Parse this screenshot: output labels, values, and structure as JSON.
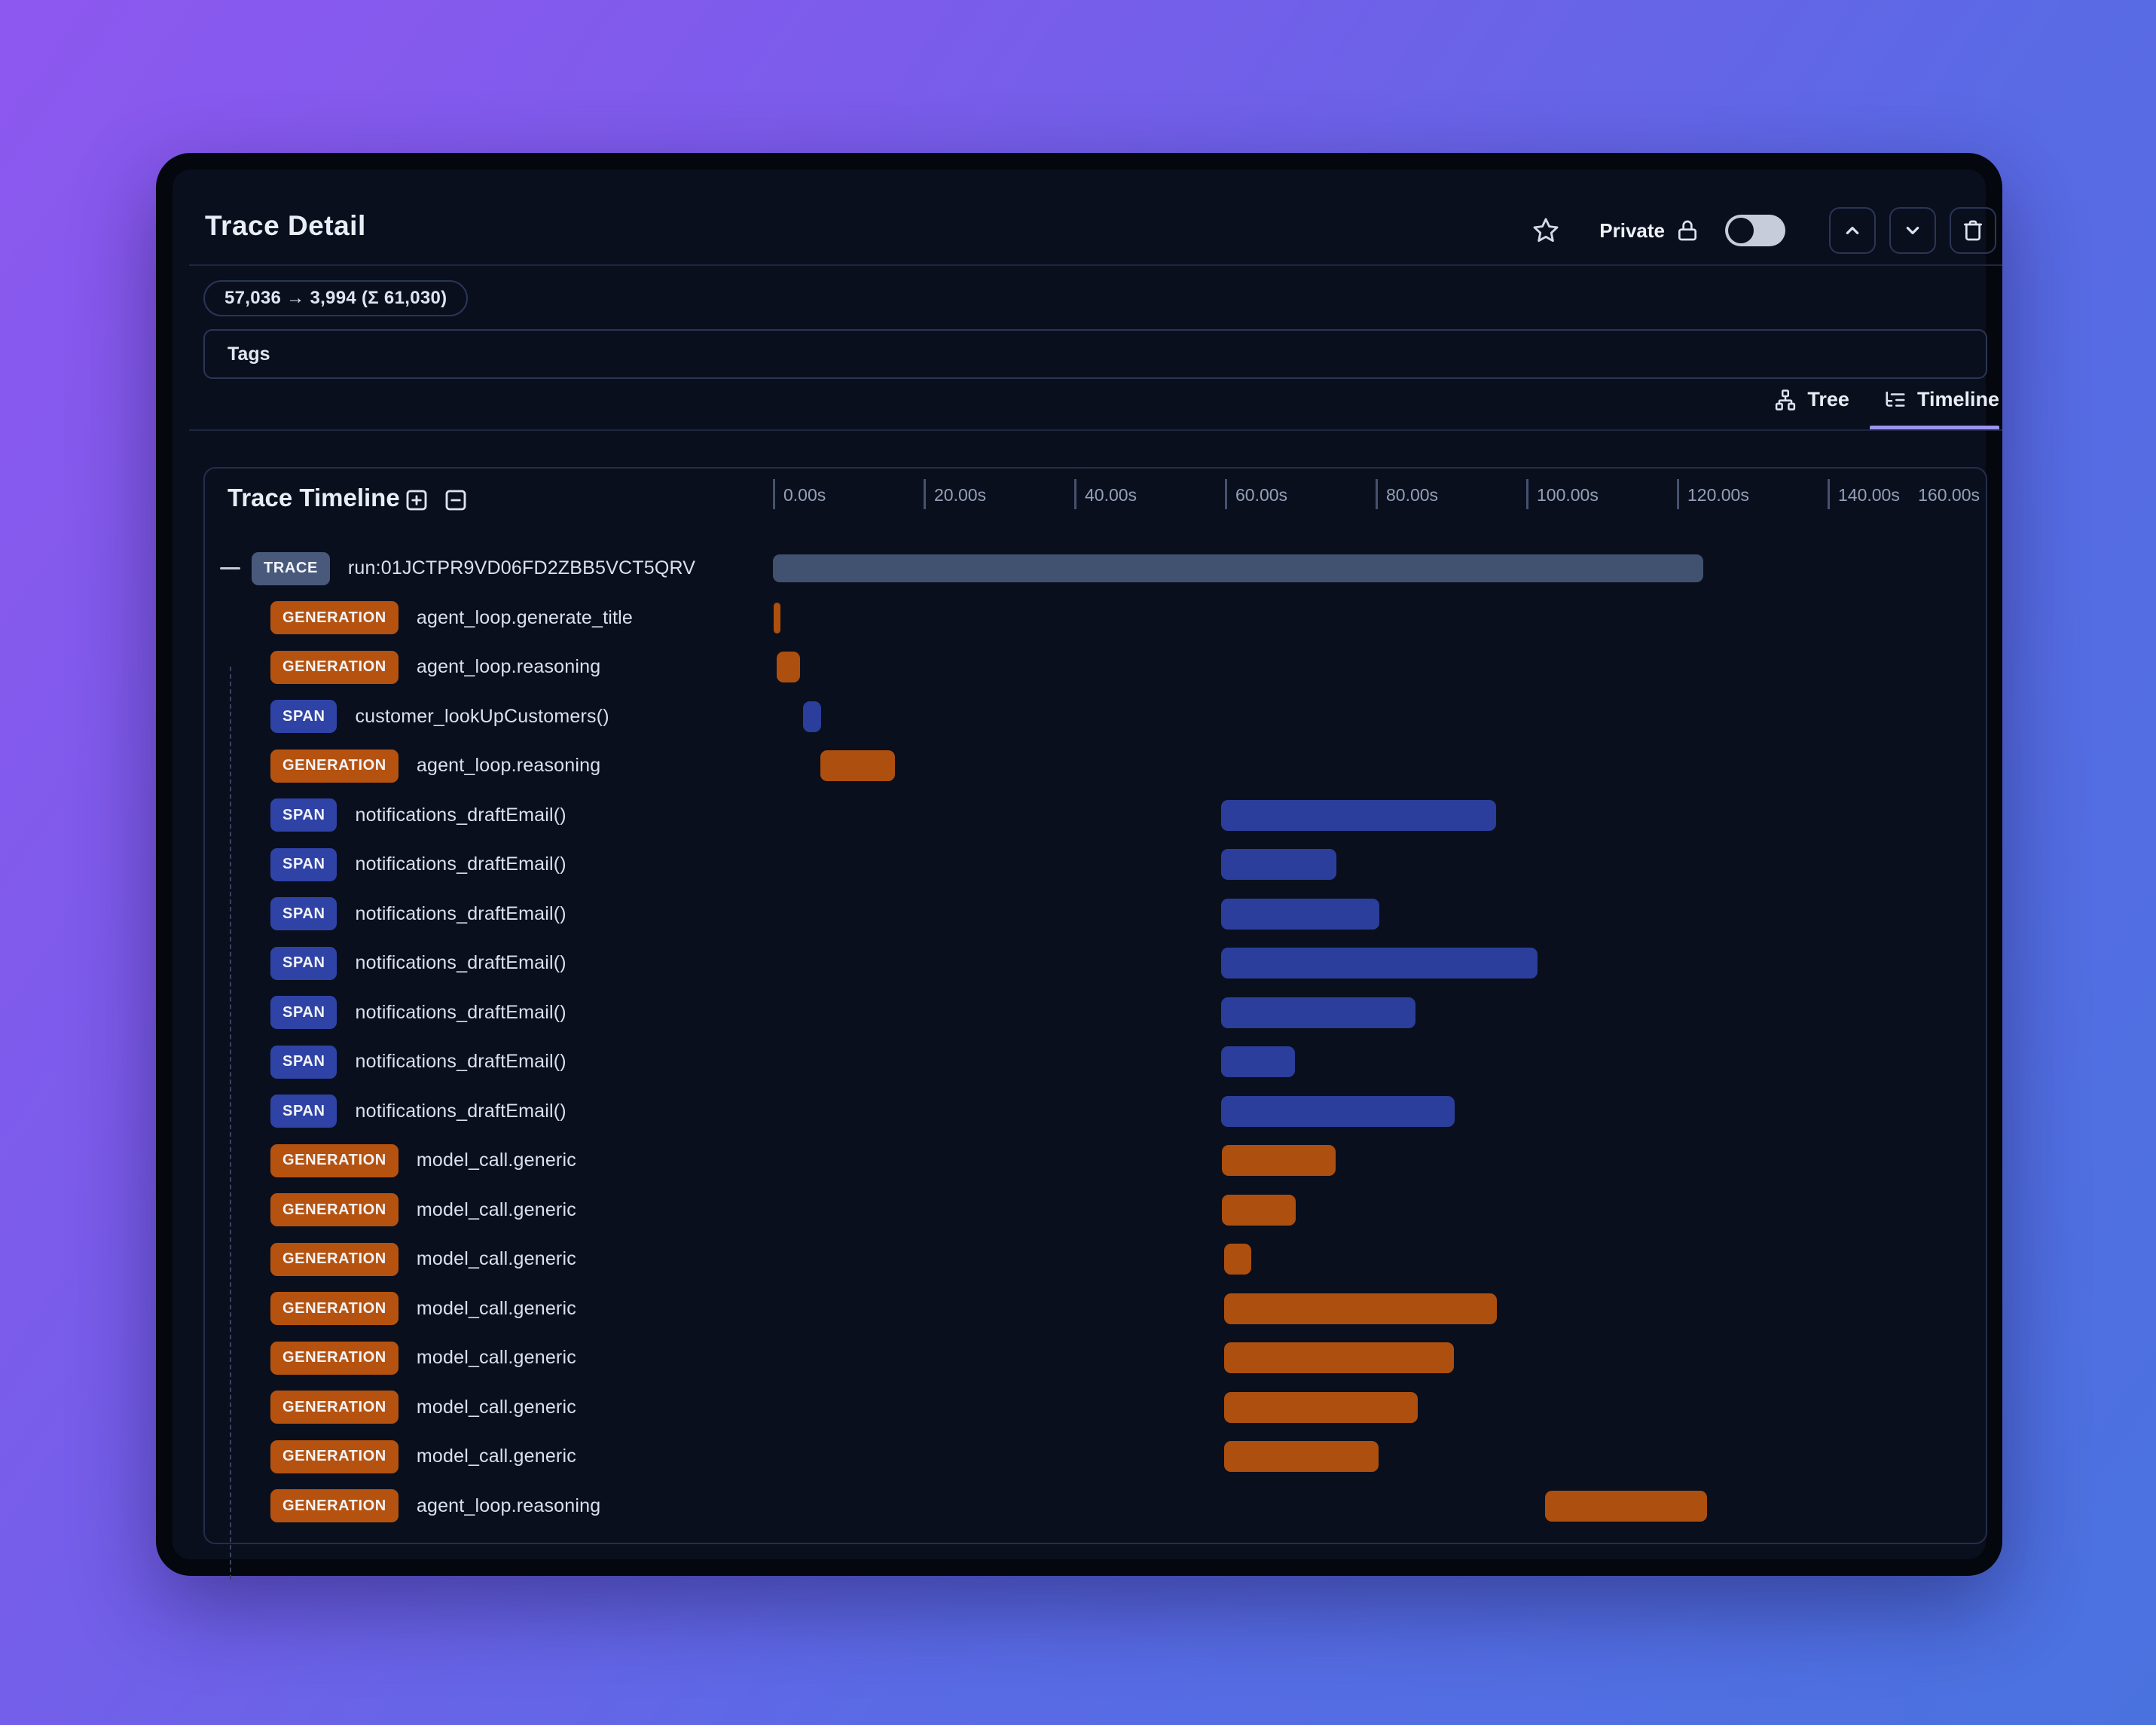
{
  "header": {
    "title": "Trace Detail",
    "privacy_label": "Private",
    "toggle_state": "off",
    "actions": {
      "prev_label": "chevron-up",
      "next_label": "chevron-down",
      "delete_label": "trash"
    }
  },
  "token_summary": "57,036 → 3,994 (Σ 61,030)",
  "tags": {
    "label": "Tags"
  },
  "tabs": [
    {
      "label": "Tree",
      "icon": "tree-icon",
      "active": false
    },
    {
      "label": "Timeline",
      "icon": "list-tree-icon",
      "active": true
    }
  ],
  "timeline": {
    "title": "Trace Timeline",
    "axis": {
      "ticks": [
        "0.00s",
        "20.00s",
        "40.00s",
        "60.00s",
        "80.00s",
        "100.00s",
        "120.00s",
        "140.00s"
      ],
      "end_label": "160.00s",
      "tick_interval_s": 20,
      "max_s": 160
    },
    "rows": [
      {
        "type": "TRACE",
        "name": "run:01JCTPR9VD06FD2ZBB5VCT5QRV",
        "start_s": 0,
        "end_s": 123.5,
        "depth": 0,
        "collapsible": true
      },
      {
        "type": "GENERATION",
        "name": "agent_loop.generate_title",
        "start_s": 0.1,
        "end_s": 1.0,
        "depth": 1
      },
      {
        "type": "GENERATION",
        "name": "agent_loop.reasoning",
        "start_s": 0.5,
        "end_s": 3.6,
        "depth": 1
      },
      {
        "type": "SPAN",
        "name": "customer_lookUpCustomers()",
        "start_s": 4.0,
        "end_s": 6.4,
        "depth": 1
      },
      {
        "type": "GENERATION",
        "name": "agent_loop.reasoning",
        "start_s": 6.3,
        "end_s": 16.2,
        "depth": 1
      },
      {
        "type": "SPAN",
        "name": "notifications_draftEmail()",
        "start_s": 59.5,
        "end_s": 96.0,
        "depth": 1
      },
      {
        "type": "SPAN",
        "name": "notifications_draftEmail()",
        "start_s": 59.5,
        "end_s": 74.8,
        "depth": 1
      },
      {
        "type": "SPAN",
        "name": "notifications_draftEmail()",
        "start_s": 59.5,
        "end_s": 80.5,
        "depth": 1
      },
      {
        "type": "SPAN",
        "name": "notifications_draftEmail()",
        "start_s": 59.5,
        "end_s": 101.5,
        "depth": 1
      },
      {
        "type": "SPAN",
        "name": "notifications_draftEmail()",
        "start_s": 59.5,
        "end_s": 85.3,
        "depth": 1
      },
      {
        "type": "SPAN",
        "name": "notifications_draftEmail()",
        "start_s": 59.5,
        "end_s": 69.3,
        "depth": 1
      },
      {
        "type": "SPAN",
        "name": "notifications_draftEmail()",
        "start_s": 59.5,
        "end_s": 90.5,
        "depth": 1
      },
      {
        "type": "GENERATION",
        "name": "model_call.generic",
        "start_s": 59.6,
        "end_s": 74.7,
        "depth": 1
      },
      {
        "type": "GENERATION",
        "name": "model_call.generic",
        "start_s": 59.6,
        "end_s": 69.4,
        "depth": 1
      },
      {
        "type": "GENERATION",
        "name": "model_call.generic",
        "start_s": 59.9,
        "end_s": 63.5,
        "depth": 1
      },
      {
        "type": "GENERATION",
        "name": "model_call.generic",
        "start_s": 59.9,
        "end_s": 96.1,
        "depth": 1
      },
      {
        "type": "GENERATION",
        "name": "model_call.generic",
        "start_s": 59.9,
        "end_s": 90.4,
        "depth": 1
      },
      {
        "type": "GENERATION",
        "name": "model_call.generic",
        "start_s": 59.9,
        "end_s": 85.6,
        "depth": 1
      },
      {
        "type": "GENERATION",
        "name": "model_call.generic",
        "start_s": 59.9,
        "end_s": 80.4,
        "depth": 1
      },
      {
        "type": "GENERATION",
        "name": "agent_loop.reasoning",
        "start_s": 102.5,
        "end_s": 124.0,
        "depth": 1
      }
    ]
  },
  "theme": {
    "background_gradient": [
      "#8d58ef",
      "#4a72df"
    ],
    "window_bg": "#0a0f1d",
    "frame": "#04070d",
    "accent_underline": "#9e93f0",
    "trace_color": "#40526f",
    "generation_color": "#ad4f0f",
    "span_color": "#2b3e9b",
    "border": "#2b3655",
    "text_primary": "#e9edf6",
    "text_muted": "#94a0b8"
  }
}
